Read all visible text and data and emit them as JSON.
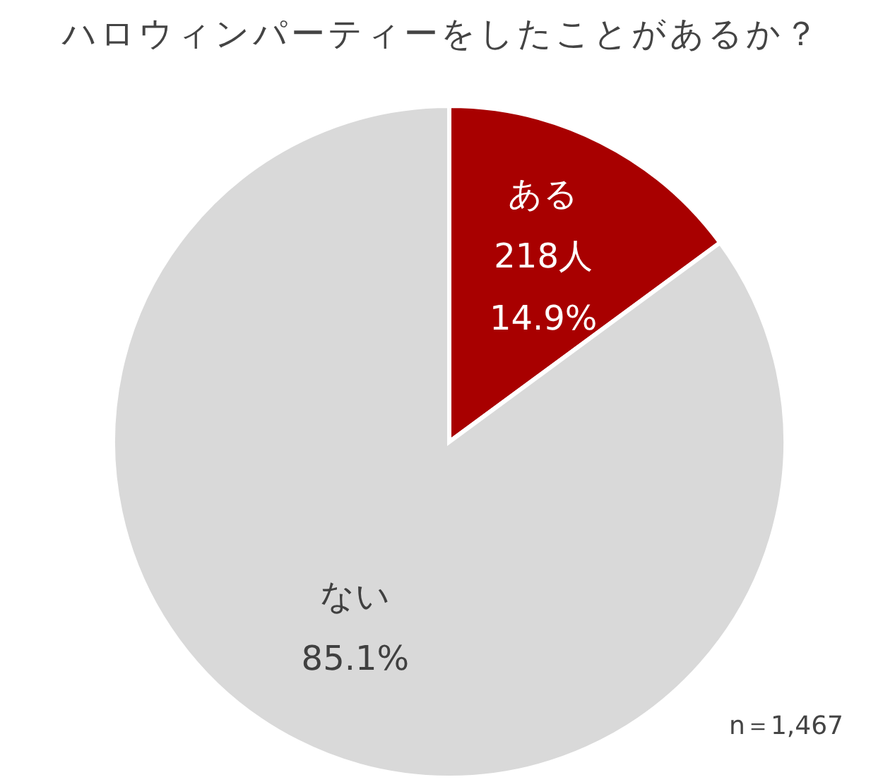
{
  "chart_data": {
    "type": "pie",
    "title": "ハロウィンパーティーをしたことがあるか？",
    "categories": [
      "ある",
      "ない"
    ],
    "values": [
      14.9,
      85.1
    ],
    "colors": [
      "#a80000",
      "#d9d9d9"
    ],
    "value_labels": [
      "218人\n14.9%",
      "85.1%"
    ],
    "annotations": [
      "n＝1,467"
    ],
    "legend": false
  }
}
